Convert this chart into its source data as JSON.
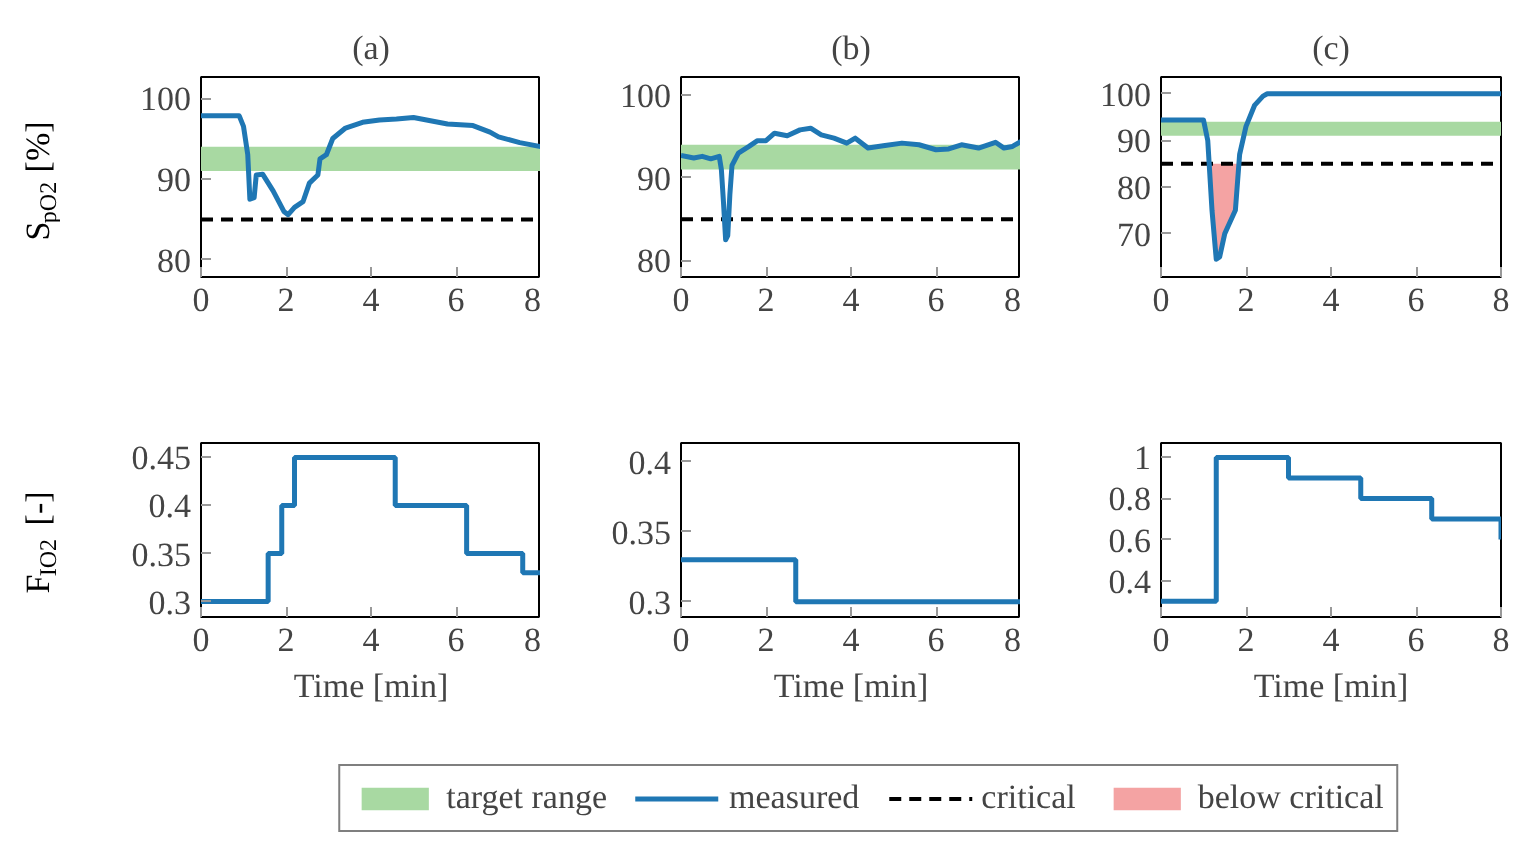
{
  "chart_data": [
    {
      "type": "line",
      "title": "(a)",
      "ylabel": "S$_{pO2}$ [%]",
      "xlim": [
        0,
        8
      ],
      "ylim": [
        77.9,
        102.6
      ],
      "xticks": [
        0,
        2,
        4,
        6,
        8
      ],
      "yticks": [
        80,
        90,
        100
      ],
      "grid": false,
      "bands": [
        {
          "axis": "y",
          "from": 91,
          "to": 94,
          "color": "#a8d9a2"
        }
      ],
      "ref_lines": [
        {
          "axis": "y",
          "value": 85,
          "color": "#000000",
          "line_style": "dashed"
        }
      ],
      "series": [
        {
          "color": "#1f77b4",
          "x": [
            0,
            0.9,
            1.0,
            1.1,
            1.15,
            1.25,
            1.3,
            1.45,
            1.7,
            1.95,
            2.05,
            2.2,
            2.4,
            2.55,
            2.75,
            2.8,
            2.95,
            3.1,
            3.4,
            3.8,
            4.2,
            4.6,
            5.0,
            5.4,
            5.8,
            6.4,
            6.8,
            7.0,
            7.5,
            8
          ],
          "values": [
            97.8,
            97.8,
            96.5,
            93,
            87.5,
            87.7,
            90.5,
            90.6,
            88.5,
            86,
            85.6,
            86.5,
            87.2,
            89.5,
            90.5,
            92.5,
            93,
            95,
            96.3,
            97,
            97.3,
            97.4,
            97.6,
            97.2,
            96.8,
            96.6,
            95.8,
            95.2,
            94.5,
            94
          ]
        }
      ]
    },
    {
      "type": "line",
      "title": "(b)",
      "xlim": [
        0,
        8
      ],
      "ylim": [
        78,
        102.2
      ],
      "xticks": [
        0,
        2,
        4,
        6,
        8
      ],
      "yticks": [
        80,
        90,
        100
      ],
      "grid": false,
      "bands": [
        {
          "axis": "y",
          "from": 91,
          "to": 94,
          "color": "#a8d9a2"
        }
      ],
      "ref_lines": [
        {
          "axis": "y",
          "value": 85,
          "color": "#000000",
          "line_style": "dashed"
        }
      ],
      "series": [
        {
          "color": "#1f77b4",
          "x": [
            0,
            0.3,
            0.5,
            0.7,
            0.9,
            0.95,
            1.0,
            1.05,
            1.1,
            1.15,
            1.2,
            1.35,
            1.6,
            1.8,
            2.0,
            2.2,
            2.5,
            2.8,
            3.05,
            3.3,
            3.6,
            3.9,
            4.1,
            4.4,
            4.8,
            5.2,
            5.6,
            6.0,
            6.3,
            6.6,
            7.0,
            7.4,
            7.6,
            7.8,
            8
          ],
          "values": [
            92.7,
            92.4,
            92.6,
            92.3,
            92.6,
            91,
            87,
            82.5,
            83,
            88,
            91.5,
            93,
            93.8,
            94.5,
            94.5,
            95.4,
            95.1,
            95.8,
            96,
            95.2,
            94.8,
            94.2,
            94.8,
            93.6,
            93.9,
            94.2,
            94,
            93.4,
            93.5,
            94,
            93.6,
            94.3,
            93.6,
            93.8,
            94.4
          ]
        }
      ]
    },
    {
      "type": "line",
      "title": "(c)",
      "xlim": [
        0,
        8
      ],
      "ylim": [
        60.7,
        103.6
      ],
      "xticks": [
        0,
        2,
        4,
        6,
        8
      ],
      "yticks": [
        70,
        80,
        90,
        100
      ],
      "grid": false,
      "legend": "bottom",
      "bands": [
        {
          "axis": "y",
          "from": 91,
          "to": 94,
          "color": "#a8d9a2",
          "label": "target range"
        }
      ],
      "ref_lines": [
        {
          "axis": "y",
          "value": 85,
          "color": "#000000",
          "line_style": "dashed",
          "label": "critical"
        }
      ],
      "series": [
        {
          "name": "measured",
          "color": "#1f77b4",
          "x": [
            0,
            1.0,
            1.1,
            1.2,
            1.3,
            1.38,
            1.5,
            1.6,
            1.75,
            1.85,
            2.0,
            2.2,
            2.4,
            2.5,
            8
          ],
          "values": [
            94.4,
            94.4,
            90,
            75,
            64.5,
            65,
            70,
            72,
            75,
            87,
            93,
            97.5,
            99.5,
            100,
            100
          ]
        },
        {
          "name": "below critical",
          "type": "area",
          "color": "#f4a3a3",
          "x": [
            1.15,
            1.2,
            1.3,
            1.38,
            1.5,
            1.6,
            1.75,
            1.83
          ],
          "values": [
            85,
            75,
            64.5,
            65,
            70,
            72,
            75,
            85
          ]
        }
      ]
    },
    {
      "type": "step",
      "xlabel": "Time [min]",
      "ylabel": "F$_{IO2}$ [-]",
      "xlim": [
        0,
        8
      ],
      "ylim": [
        0.284,
        0.465
      ],
      "xticks": [
        0,
        2,
        4,
        6,
        8
      ],
      "yticks": [
        0.3,
        0.35,
        0.4,
        0.45
      ],
      "grid": false,
      "series": [
        {
          "color": "#1f77b4",
          "x": [
            0,
            1.58,
            1.9,
            2.2,
            4.57,
            6.25,
            7.57,
            8
          ],
          "values": [
            0.3,
            0.35,
            0.4,
            0.45,
            0.4,
            0.35,
            0.33,
            0.33
          ]
        }
      ]
    },
    {
      "type": "step",
      "xlabel": "Time [min]",
      "xlim": [
        0,
        8
      ],
      "ylim": [
        0.289,
        0.4135
      ],
      "xticks": [
        0,
        2,
        4,
        6,
        8
      ],
      "yticks": [
        0.3,
        0.35,
        0.4
      ],
      "grid": false,
      "series": [
        {
          "color": "#1f77b4",
          "x": [
            0,
            2.7,
            8
          ],
          "values": [
            0.33,
            0.3,
            0.3
          ]
        }
      ]
    },
    {
      "type": "step",
      "xlabel": "Time [min]",
      "xlim": [
        0,
        8
      ],
      "ylim": [
        0.2235,
        1.07
      ],
      "xticks": [
        0,
        2,
        4,
        6,
        8
      ],
      "yticks": [
        0.4,
        0.6,
        0.8,
        1
      ],
      "grid": false,
      "series": [
        {
          "color": "#1f77b4",
          "x": [
            0,
            1.3,
            3.0,
            4.7,
            6.37,
            8
          ],
          "values": [
            0.3,
            1.0,
            0.9,
            0.8,
            0.7,
            0.6
          ]
        }
      ]
    }
  ]
}
